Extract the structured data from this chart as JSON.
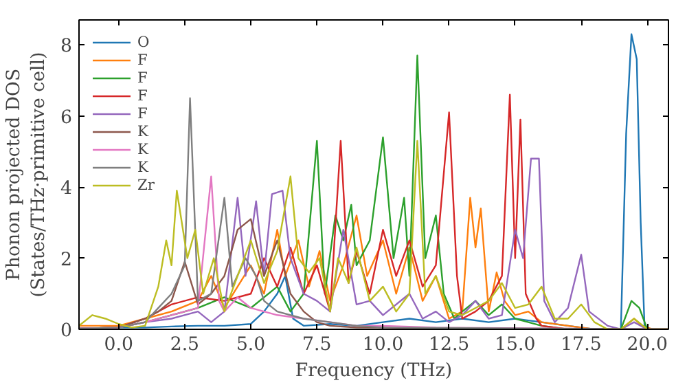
{
  "chart_data": {
    "type": "line",
    "xlabel": "Frequency (THz)",
    "ylabel": "Phonon projected DOS\n(States/THz·primitive cell)",
    "xlim": [
      -1.5,
      20.8
    ],
    "ylim": [
      0,
      8.7
    ],
    "xticks": [
      {
        "value": 0,
        "label": "0.0"
      },
      {
        "value": 2.5,
        "label": "2.5"
      },
      {
        "value": 5,
        "label": "5.0"
      },
      {
        "value": 7.5,
        "label": "7.5"
      },
      {
        "value": 10,
        "label": "10.0"
      },
      {
        "value": 12.5,
        "label": "12.5"
      },
      {
        "value": 15,
        "label": "15.0"
      },
      {
        "value": 17.5,
        "label": "17.5"
      },
      {
        "value": 20,
        "label": "20.0"
      }
    ],
    "yticks": [
      0,
      2,
      4,
      6,
      8
    ],
    "grid": false,
    "legend": "top left",
    "series": [
      {
        "name": "O",
        "color": "#1f77b4",
        "x": [
          -1.5,
          0,
          1,
          2,
          3,
          4,
          5,
          5.5,
          6,
          6.3,
          6.6,
          7,
          8,
          9,
          10,
          11,
          12,
          13,
          14,
          15,
          16,
          17,
          18,
          19,
          19.2,
          19.4,
          19.6,
          19.75,
          19.9,
          20.1,
          20.8
        ],
        "values": [
          0.02,
          0.05,
          0.05,
          0.08,
          0.1,
          0.1,
          0.15,
          0.5,
          1.0,
          1.5,
          0.3,
          0.1,
          0.15,
          0.1,
          0.2,
          0.3,
          0.2,
          0.3,
          0.2,
          0.3,
          0.2,
          0.1,
          0,
          0,
          5.5,
          8.3,
          7.6,
          3,
          0,
          0,
          0
        ]
      },
      {
        "name": "F",
        "color": "#ff7f0e",
        "x": [
          -1.5,
          0,
          1,
          2,
          3,
          3.5,
          4,
          4.5,
          5,
          5.5,
          6,
          6.3,
          6.8,
          7.2,
          7.6,
          8,
          8.5,
          9,
          9.4,
          10,
          10.5,
          11,
          11.5,
          12,
          12.5,
          13,
          13.3,
          13.5,
          13.7,
          14,
          14.3,
          14.6,
          15,
          15.5,
          16,
          17,
          18,
          19,
          19.5,
          19.8,
          20.2,
          20.8
        ],
        "values": [
          0.1,
          0.1,
          0.3,
          0.5,
          0.8,
          1.5,
          0.6,
          1.2,
          1.8,
          1.0,
          2.8,
          1.5,
          2.5,
          1.2,
          2.2,
          0.8,
          1.8,
          3.2,
          1.5,
          2.5,
          1.0,
          2.3,
          0.8,
          1.5,
          0.3,
          0.5,
          3.7,
          2.3,
          3.4,
          0.5,
          1.6,
          0.8,
          0.4,
          0.5,
          0.2,
          0.1,
          0,
          0,
          0.3,
          0.1,
          0,
          0
        ]
      },
      {
        "name": "F",
        "color": "#2ca02c",
        "x": [
          -1.5,
          0,
          1,
          2,
          3,
          4,
          5,
          6,
          6.5,
          7,
          7.5,
          7.8,
          8.2,
          8.5,
          8.8,
          9,
          9.5,
          10,
          10.4,
          10.8,
          11,
          11.3,
          11.6,
          12,
          12.3,
          12.7,
          13,
          13.5,
          14,
          14.5,
          15,
          15.5,
          16,
          17,
          19,
          19.4,
          19.7,
          20,
          20.8
        ],
        "values": [
          0.02,
          0.05,
          0.2,
          0.4,
          0.6,
          0.9,
          0.6,
          1.2,
          0.5,
          1.0,
          5.3,
          1.0,
          3.2,
          2.5,
          3.5,
          1.8,
          2.5,
          5.4,
          2.0,
          3.7,
          1.5,
          7.7,
          2.0,
          3.2,
          1.0,
          0.3,
          0.5,
          0.8,
          0.4,
          0.7,
          0.3,
          0.2,
          0.1,
          0,
          0,
          0.8,
          0.6,
          0,
          0
        ]
      },
      {
        "name": "F",
        "color": "#d62728",
        "x": [
          -1.5,
          0,
          1,
          2,
          3,
          4,
          5,
          5.5,
          6,
          6.5,
          7,
          7.5,
          8,
          8.4,
          8.7,
          9,
          9.5,
          10,
          10.5,
          11,
          11.5,
          12,
          12.5,
          12.8,
          13,
          13.5,
          14,
          14.5,
          14.8,
          15,
          15.2,
          15.4,
          15.8,
          16,
          17,
          19
        ],
        "values": [
          0.02,
          0.05,
          0.3,
          0.7,
          0.9,
          0.8,
          1.0,
          2.0,
          1.2,
          2.3,
          1.0,
          1.8,
          0.5,
          5.3,
          1.3,
          2.2,
          1.0,
          2.8,
          1.5,
          2.5,
          1.2,
          1.8,
          6.1,
          1.5,
          0.3,
          0.5,
          0.8,
          1.5,
          6.6,
          2.0,
          5.9,
          1.0,
          0.3,
          0.1,
          0,
          0
        ]
      },
      {
        "name": "F",
        "color": "#9467bd",
        "x": [
          -1.5,
          0,
          1,
          2,
          3,
          3.5,
          4,
          4.5,
          4.8,
          5.2,
          5.5,
          5.8,
          6.2,
          6.5,
          7,
          7.5,
          8,
          8.5,
          9,
          9.5,
          10,
          11,
          11.5,
          12,
          12.5,
          13,
          13.5,
          14,
          14.5,
          15,
          15.3,
          15.6,
          15.9,
          16.1,
          16.5,
          17,
          17.5,
          17.8,
          18.5,
          19,
          19.5,
          20,
          20.8
        ],
        "values": [
          0.02,
          0.05,
          0.2,
          0.3,
          0.5,
          0.2,
          0.5,
          3.7,
          1.5,
          3.6,
          1.5,
          3.8,
          3.9,
          2.0,
          1.0,
          0.8,
          0.5,
          2.8,
          0.7,
          0.8,
          0.4,
          1.0,
          0.3,
          0.5,
          0.2,
          0.4,
          0.8,
          0.3,
          0.4,
          2.8,
          2.0,
          4.8,
          4.8,
          0.8,
          0.2,
          0.6,
          2.1,
          0.5,
          0.1,
          0,
          0.2,
          0,
          0
        ]
      },
      {
        "name": "K",
        "color": "#8c564b",
        "x": [
          -1.5,
          0,
          1,
          1.5,
          2,
          2.5,
          3,
          3.5,
          4,
          4.5,
          5,
          5.5,
          6,
          6.5,
          7,
          7.5,
          8,
          9,
          10,
          12,
          20.8
        ],
        "values": [
          0.02,
          0.05,
          0.3,
          0.5,
          0.8,
          1.9,
          0.7,
          1.0,
          1.5,
          2.8,
          3.1,
          1.5,
          2.5,
          1.0,
          0.5,
          0.2,
          0.1,
          0.05,
          0.05,
          0.02,
          0
        ]
      },
      {
        "name": "K",
        "color": "#e377c2",
        "x": [
          -1.5,
          0,
          1,
          2,
          3,
          3.5,
          3.8,
          4,
          4.5,
          5,
          6,
          7,
          8,
          9,
          10,
          12,
          20.8
        ],
        "values": [
          0.02,
          0.05,
          0.2,
          0.4,
          0.6,
          4.3,
          0.8,
          0.5,
          0.9,
          0.6,
          0.4,
          0.3,
          0.2,
          0.1,
          0.1,
          0.05,
          0
        ]
      },
      {
        "name": "K",
        "color": "#7f7f7f",
        "x": [
          -1.5,
          0,
          1,
          2,
          2.5,
          2.7,
          3.0,
          3.5,
          4,
          4.3,
          4.8,
          5.2,
          5.5,
          6,
          7,
          8,
          9,
          10,
          20.8
        ],
        "values": [
          0.02,
          0.05,
          0.2,
          1.0,
          1.8,
          6.5,
          0.8,
          1.0,
          3.7,
          1.2,
          2.0,
          1.5,
          0.8,
          0.5,
          0.3,
          0.2,
          0.1,
          0.05,
          0
        ]
      },
      {
        "name": "Zr",
        "color": "#bcbd22",
        "x": [
          -1.5,
          -1,
          -0.5,
          0,
          0.5,
          1,
          1.5,
          1.8,
          2.0,
          2.2,
          2.6,
          2.9,
          3.2,
          3.6,
          4,
          4.5,
          5,
          5.5,
          6,
          6.5,
          6.8,
          7.2,
          7.6,
          8,
          8.3,
          8.7,
          9,
          9.5,
          10,
          10.5,
          11,
          11.3,
          11.6,
          12,
          12.5,
          13,
          13.5,
          14,
          14.5,
          15,
          15.5,
          16,
          16.5,
          17,
          17.5,
          18,
          18.5,
          19,
          19.5,
          20,
          20.8
        ],
        "values": [
          0.1,
          0.4,
          0.3,
          0.15,
          0.05,
          0.1,
          1.2,
          2.5,
          1.8,
          3.9,
          2.0,
          2.8,
          1.0,
          2.0,
          0.5,
          1.5,
          2.5,
          1.3,
          2.2,
          4.3,
          2.0,
          1.6,
          2.0,
          0.5,
          2.0,
          1.3,
          2.3,
          0.8,
          1.2,
          0.5,
          1.0,
          5.3,
          1.0,
          1.5,
          0.5,
          0.4,
          0.6,
          0.8,
          1.3,
          0.6,
          0.7,
          1.2,
          0.3,
          0.3,
          0.7,
          0.2,
          0,
          0,
          0.3,
          0,
          0
        ]
      }
    ]
  }
}
